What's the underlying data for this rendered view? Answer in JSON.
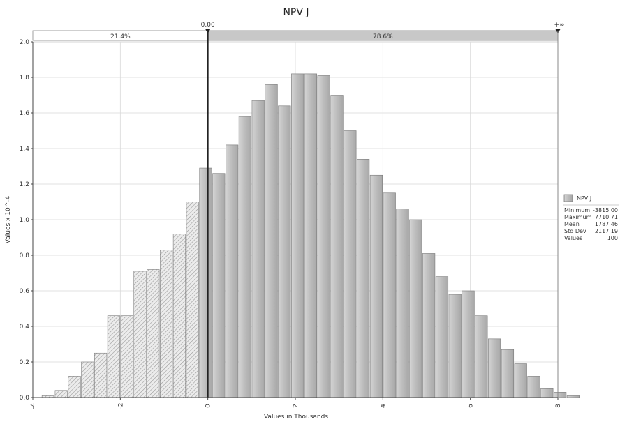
{
  "chart_data": {
    "type": "bar",
    "title": "NPV J",
    "xlabel": "Values in Thousands",
    "ylabel": "Values x 10^-4",
    "xlim": [
      -4,
      8
    ],
    "ylim": [
      0,
      2.0
    ],
    "x_ticks": [
      "-4",
      "-2",
      "0",
      "2",
      "4",
      "6",
      "8"
    ],
    "y_ticks": [
      "0.0",
      "0.2",
      "0.4",
      "0.6",
      "0.8",
      "1.0",
      "1.2",
      "1.4",
      "1.6",
      "1.8",
      "2.0"
    ],
    "grid": true,
    "bin_width": 0.3,
    "bin_start": -3.8,
    "values": [
      0.01,
      0.04,
      0.12,
      0.2,
      0.25,
      0.46,
      0.46,
      0.71,
      0.72,
      0.83,
      0.92,
      1.1,
      1.29,
      1.26,
      1.42,
      1.58,
      1.67,
      1.76,
      1.64,
      1.82,
      1.82,
      1.81,
      1.7,
      1.5,
      1.34,
      1.25,
      1.15,
      1.06,
      1.0,
      0.81,
      0.68,
      0.58,
      0.6,
      0.46,
      0.33,
      0.27,
      0.19,
      0.12,
      0.05,
      0.03,
      0.01
    ],
    "delimiters": {
      "left_value": "0.00",
      "right_value": "+∞",
      "left_pct": "21.4%",
      "right_pct": "78.6%",
      "split_x": 0
    },
    "legend": {
      "series_name": "NPV J",
      "placement": "right",
      "stats": [
        {
          "label": "Minimum",
          "value": "-3815.00"
        },
        {
          "label": "Maximum",
          "value": "7710.71"
        },
        {
          "label": "Mean",
          "value": "1787.46"
        },
        {
          "label": "Std Dev",
          "value": "2117.19"
        },
        {
          "label": "Values",
          "value": "100"
        }
      ]
    }
  },
  "colors": {
    "bar_fill_left": "#e2e2e2",
    "bar_fill_right": "#bdbdbd",
    "bar_stroke": "#7a7a7a",
    "grid": "#d9d9d9",
    "split_bar_right": "#c8c8c8",
    "delimiter_line": "#222222"
  }
}
